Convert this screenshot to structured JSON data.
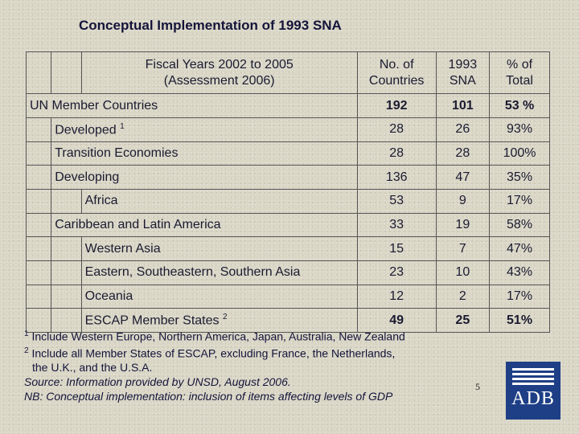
{
  "title": "Conceptual Implementation of 1993 SNA",
  "table": {
    "header": {
      "label_line1": "Fiscal Years 2002 to 2005",
      "label_line2": "(Assessment 2006)",
      "col_countries_line1": "No. of",
      "col_countries_line2": "Countries",
      "col_sna_line1": "1993",
      "col_sna_line2": "SNA",
      "col_pct_line1": "% of",
      "col_pct_line2": "Total"
    },
    "rows": [
      {
        "label": "UN Member Countries",
        "sup": "",
        "countries": "192",
        "sna": "101",
        "pct": "53 %"
      },
      {
        "label": "Developed",
        "sup": "1",
        "countries": "28",
        "sna": "26",
        "pct": "93%"
      },
      {
        "label": "Transition Economies",
        "sup": "",
        "countries": "28",
        "sna": "28",
        "pct": "100%"
      },
      {
        "label": "Developing",
        "sup": "",
        "countries": "136",
        "sna": "47",
        "pct": "35%"
      },
      {
        "label": "Africa",
        "sup": "",
        "countries": "53",
        "sna": "9",
        "pct": "17%"
      },
      {
        "label": "Caribbean and Latin America",
        "sup": "",
        "countries": "33",
        "sna": "19",
        "pct": "58%"
      },
      {
        "label": "Western Asia",
        "sup": "",
        "countries": "15",
        "sna": "7",
        "pct": "47%"
      },
      {
        "label": "Eastern, Southeastern, Southern Asia",
        "sup": "",
        "countries": "23",
        "sna": "10",
        "pct": "43%"
      },
      {
        "label": "Oceania",
        "sup": "",
        "countries": "12",
        "sna": "2",
        "pct": "17%"
      },
      {
        "label": "ESCAP Member States",
        "sup": "2",
        "countries": "49",
        "sna": "25",
        "pct": "51%"
      }
    ]
  },
  "footnotes": {
    "fn1_mark": "1",
    "fn1_text": "Include Western Europe, Northern America, Japan, Australia, New Zealand",
    "fn2_mark": "2",
    "fn2_text": "Include all Member States of ESCAP, excluding France, the Netherlands,",
    "fn2_cont": "the U.K., and the U.S.A.",
    "source": "Source: Information provided by UNSD, August 2006.",
    "nb": "NB: Conceptual implementation: inclusion of items affecting levels of GDP"
  },
  "page_number": "5",
  "logo": {
    "text": "ADB",
    "bg_color": "#1e3f86"
  }
}
